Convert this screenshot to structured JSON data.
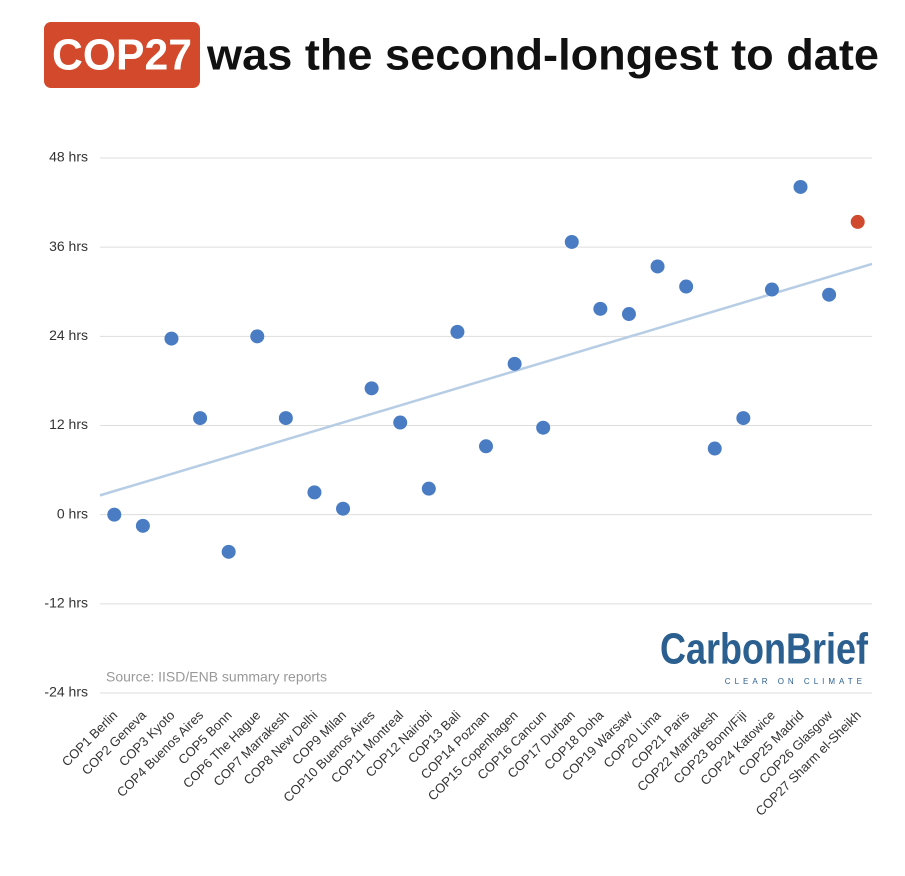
{
  "chart_data": {
    "type": "scatter",
    "title_highlight": "COP27",
    "title": "was the second-longest to date",
    "source": "Source: IISD/ENB summary reports",
    "brand": "CarbonBrief",
    "brand_tagline": "CLEAR ON CLIMATE",
    "categories": [
      "COP1 Berlin",
      "COP2 Geneva",
      "COP3 Kyoto",
      "COP4 Buenos Aires",
      "COP5 Bonn",
      "COP6 The Hague",
      "COP7 Marrakesh",
      "COP8 New Delhi",
      "COP9 Milan",
      "COP10 Buenos Aires",
      "COP11 Montreal",
      "COP12 Nairobi",
      "COP13 Bali",
      "COP14 Poznan",
      "COP15 Copenhagen",
      "COP16 Cancun",
      "COP17 Durban",
      "COP18 Doha",
      "COP19 Warsaw",
      "COP20 Lima",
      "COP21 Paris",
      "COP22 Marrakesh",
      "COP23 Bonn/Fiji",
      "COP24 Katowice",
      "COP25 Madrid",
      "COP26 Glasgow",
      "COP27 Sharm el-Sheikh"
    ],
    "values": [
      0,
      -1.5,
      23.7,
      13,
      -5,
      24,
      13,
      3,
      0.8,
      17,
      12.4,
      3.5,
      24.6,
      9.2,
      20.3,
      11.7,
      36.7,
      27.7,
      27,
      33.4,
      30.7,
      8.9,
      13,
      30.3,
      44.1,
      29.6,
      39.4
    ],
    "point_colors": [
      "#4a7cc4",
      "#4a7cc4",
      "#4a7cc4",
      "#4a7cc4",
      "#4a7cc4",
      "#4a7cc4",
      "#4a7cc4",
      "#4a7cc4",
      "#4a7cc4",
      "#4a7cc4",
      "#4a7cc4",
      "#4a7cc4",
      "#4a7cc4",
      "#4a7cc4",
      "#4a7cc4",
      "#4a7cc4",
      "#4a7cc4",
      "#4a7cc4",
      "#4a7cc4",
      "#4a7cc4",
      "#4a7cc4",
      "#4a7cc4",
      "#4a7cc4",
      "#4a7cc4",
      "#4a7cc4",
      "#4a7cc4",
      "#cf4a2e"
    ],
    "trendline": true,
    "trend_color": "#b7cde6",
    "ylim": [
      -24,
      48
    ],
    "yticks": [
      {
        "value": -24,
        "label": "-24 hrs"
      },
      {
        "value": -12,
        "label": "-12 hrs"
      },
      {
        "value": 0,
        "label": "0 hrs"
      },
      {
        "value": 12,
        "label": "12 hrs"
      },
      {
        "value": 24,
        "label": "24 hrs"
      },
      {
        "value": 36,
        "label": "36 hrs"
      },
      {
        "value": 48,
        "label": "48 hrs"
      }
    ],
    "grid": true
  }
}
